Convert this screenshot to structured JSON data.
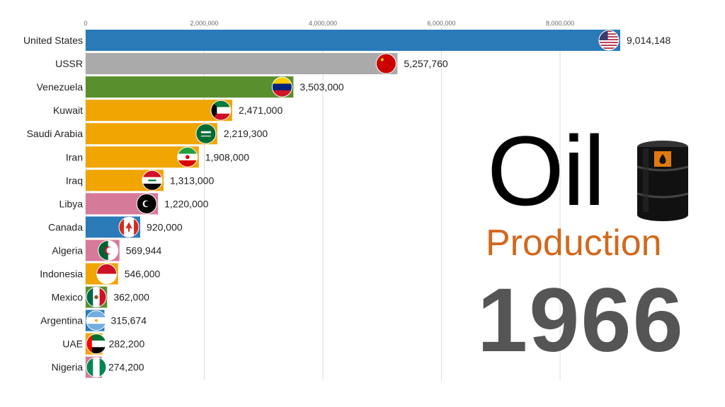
{
  "title": {
    "word": "Oil",
    "subtitle": "Production",
    "year": "1966"
  },
  "chart_data": {
    "type": "bar",
    "orientation": "horizontal",
    "title": "Oil Production",
    "year": "1966",
    "xlim": [
      0,
      9014148
    ],
    "x_ticks": [
      0,
      2000000,
      4000000,
      6000000,
      8000000
    ],
    "x_tick_labels": [
      "0",
      "2,000,000",
      "4,000,000",
      "6,000,000",
      "8,000,000"
    ],
    "grid": true,
    "categories": [
      "United States",
      "USSR",
      "Venezuela",
      "Kuwait",
      "Saudi Arabia",
      "Iran",
      "Iraq",
      "Libya",
      "Canada",
      "Algeria",
      "Indonesia",
      "Mexico",
      "Argentina",
      "UAE",
      "Nigeria"
    ],
    "values": [
      9014148,
      5257760,
      3503000,
      2471000,
      2219300,
      1908000,
      1313000,
      1220000,
      920000,
      569944,
      546000,
      362000,
      315674,
      282200,
      274200
    ],
    "value_labels": [
      "9,014,148",
      "5,257,760",
      "3,503,000",
      "2,471,000",
      "2,219,300",
      "1,908,000",
      "1,313,000",
      "1,220,000",
      "920,000",
      "569,944",
      "546,000",
      "362,000",
      "315,674",
      "282,200",
      "274,200"
    ],
    "bar_colors": [
      "#2a7ab8",
      "#aaaaaa",
      "#5a8f2e",
      "#f0a500",
      "#f0a500",
      "#f0a500",
      "#f0a500",
      "#d67a9a",
      "#2a7ab8",
      "#d67a9a",
      "#f0a500",
      "#5a8f2e",
      "#2a7ab8",
      "#f0a500",
      "#d67a9a"
    ],
    "flag_icons": [
      "us-flag-icon",
      "ussr-flag-icon",
      "venezuela-flag-icon",
      "kuwait-flag-icon",
      "saudi-arabia-flag-icon",
      "iran-flag-icon",
      "iraq-flag-icon",
      "libya-flag-icon",
      "canada-flag-icon",
      "algeria-flag-icon",
      "indonesia-flag-icon",
      "mexico-flag-icon",
      "argentina-flag-icon",
      "uae-flag-icon",
      "nigeria-flag-icon"
    ]
  },
  "colors": {
    "title": "#000000",
    "subtitle": "#d2691e",
    "year": "#555555",
    "barrel": "#111111",
    "barrel_label": "#e07a10"
  },
  "icons": {
    "barrel": "oil-barrel-icon"
  }
}
